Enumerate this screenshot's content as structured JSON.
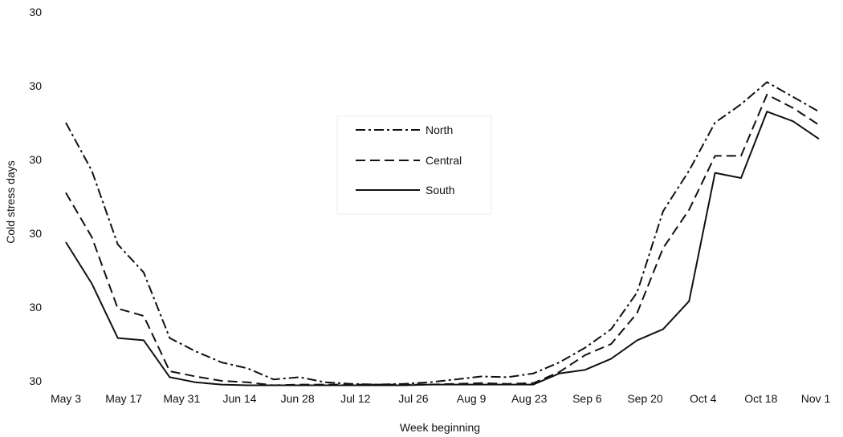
{
  "chart_data": {
    "type": "line",
    "title": "",
    "xlabel": "Week beginning",
    "ylabel": "Cold stress days",
    "x_tick_labels": [
      "May 3",
      "May 17",
      "May 31",
      "Jun 14",
      "Jun 28",
      "Jul 12",
      "Jul 26",
      "Aug 9",
      "Aug 23",
      "Sep 6",
      "Sep 20",
      "Oct 4",
      "Oct 18",
      "Nov 1"
    ],
    "y_tick_labels": [
      "30",
      "30",
      "30",
      "30",
      "30",
      "30"
    ],
    "ylim": [
      0,
      5
    ],
    "grid": false,
    "legend_position": "center",
    "series": [
      {
        "name": "North",
        "dash": "dash-dot",
        "values": [
          3.5,
          2.85,
          1.85,
          1.47,
          0.58,
          0.4,
          0.25,
          0.17,
          0.02,
          0.05,
          -0.02,
          -0.04,
          -0.05,
          -0.04,
          -0.02,
          0.02,
          0.06,
          0.05,
          0.1,
          0.25,
          0.45,
          0.7,
          1.2,
          2.3,
          2.85,
          3.5,
          3.75,
          4.05,
          3.85,
          3.65
        ]
      },
      {
        "name": "Central",
        "dash": "dashed",
        "values": [
          2.55,
          1.95,
          0.98,
          0.88,
          0.13,
          0.06,
          0.0,
          -0.02,
          -0.06,
          -0.05,
          -0.05,
          -0.05,
          -0.05,
          -0.05,
          -0.05,
          -0.04,
          -0.03,
          -0.04,
          -0.03,
          0.12,
          0.35,
          0.5,
          0.92,
          1.8,
          2.32,
          3.05,
          3.05,
          3.88,
          3.7,
          3.47
        ]
      },
      {
        "name": "South",
        "dash": "solid",
        "values": [
          1.88,
          1.32,
          0.58,
          0.55,
          0.05,
          -0.02,
          -0.05,
          -0.06,
          -0.06,
          -0.06,
          -0.06,
          -0.06,
          -0.06,
          -0.06,
          -0.05,
          -0.05,
          -0.05,
          -0.05,
          -0.05,
          0.1,
          0.15,
          0.3,
          0.55,
          0.7,
          1.08,
          2.82,
          2.75,
          3.65,
          3.52,
          3.28
        ]
      }
    ]
  }
}
